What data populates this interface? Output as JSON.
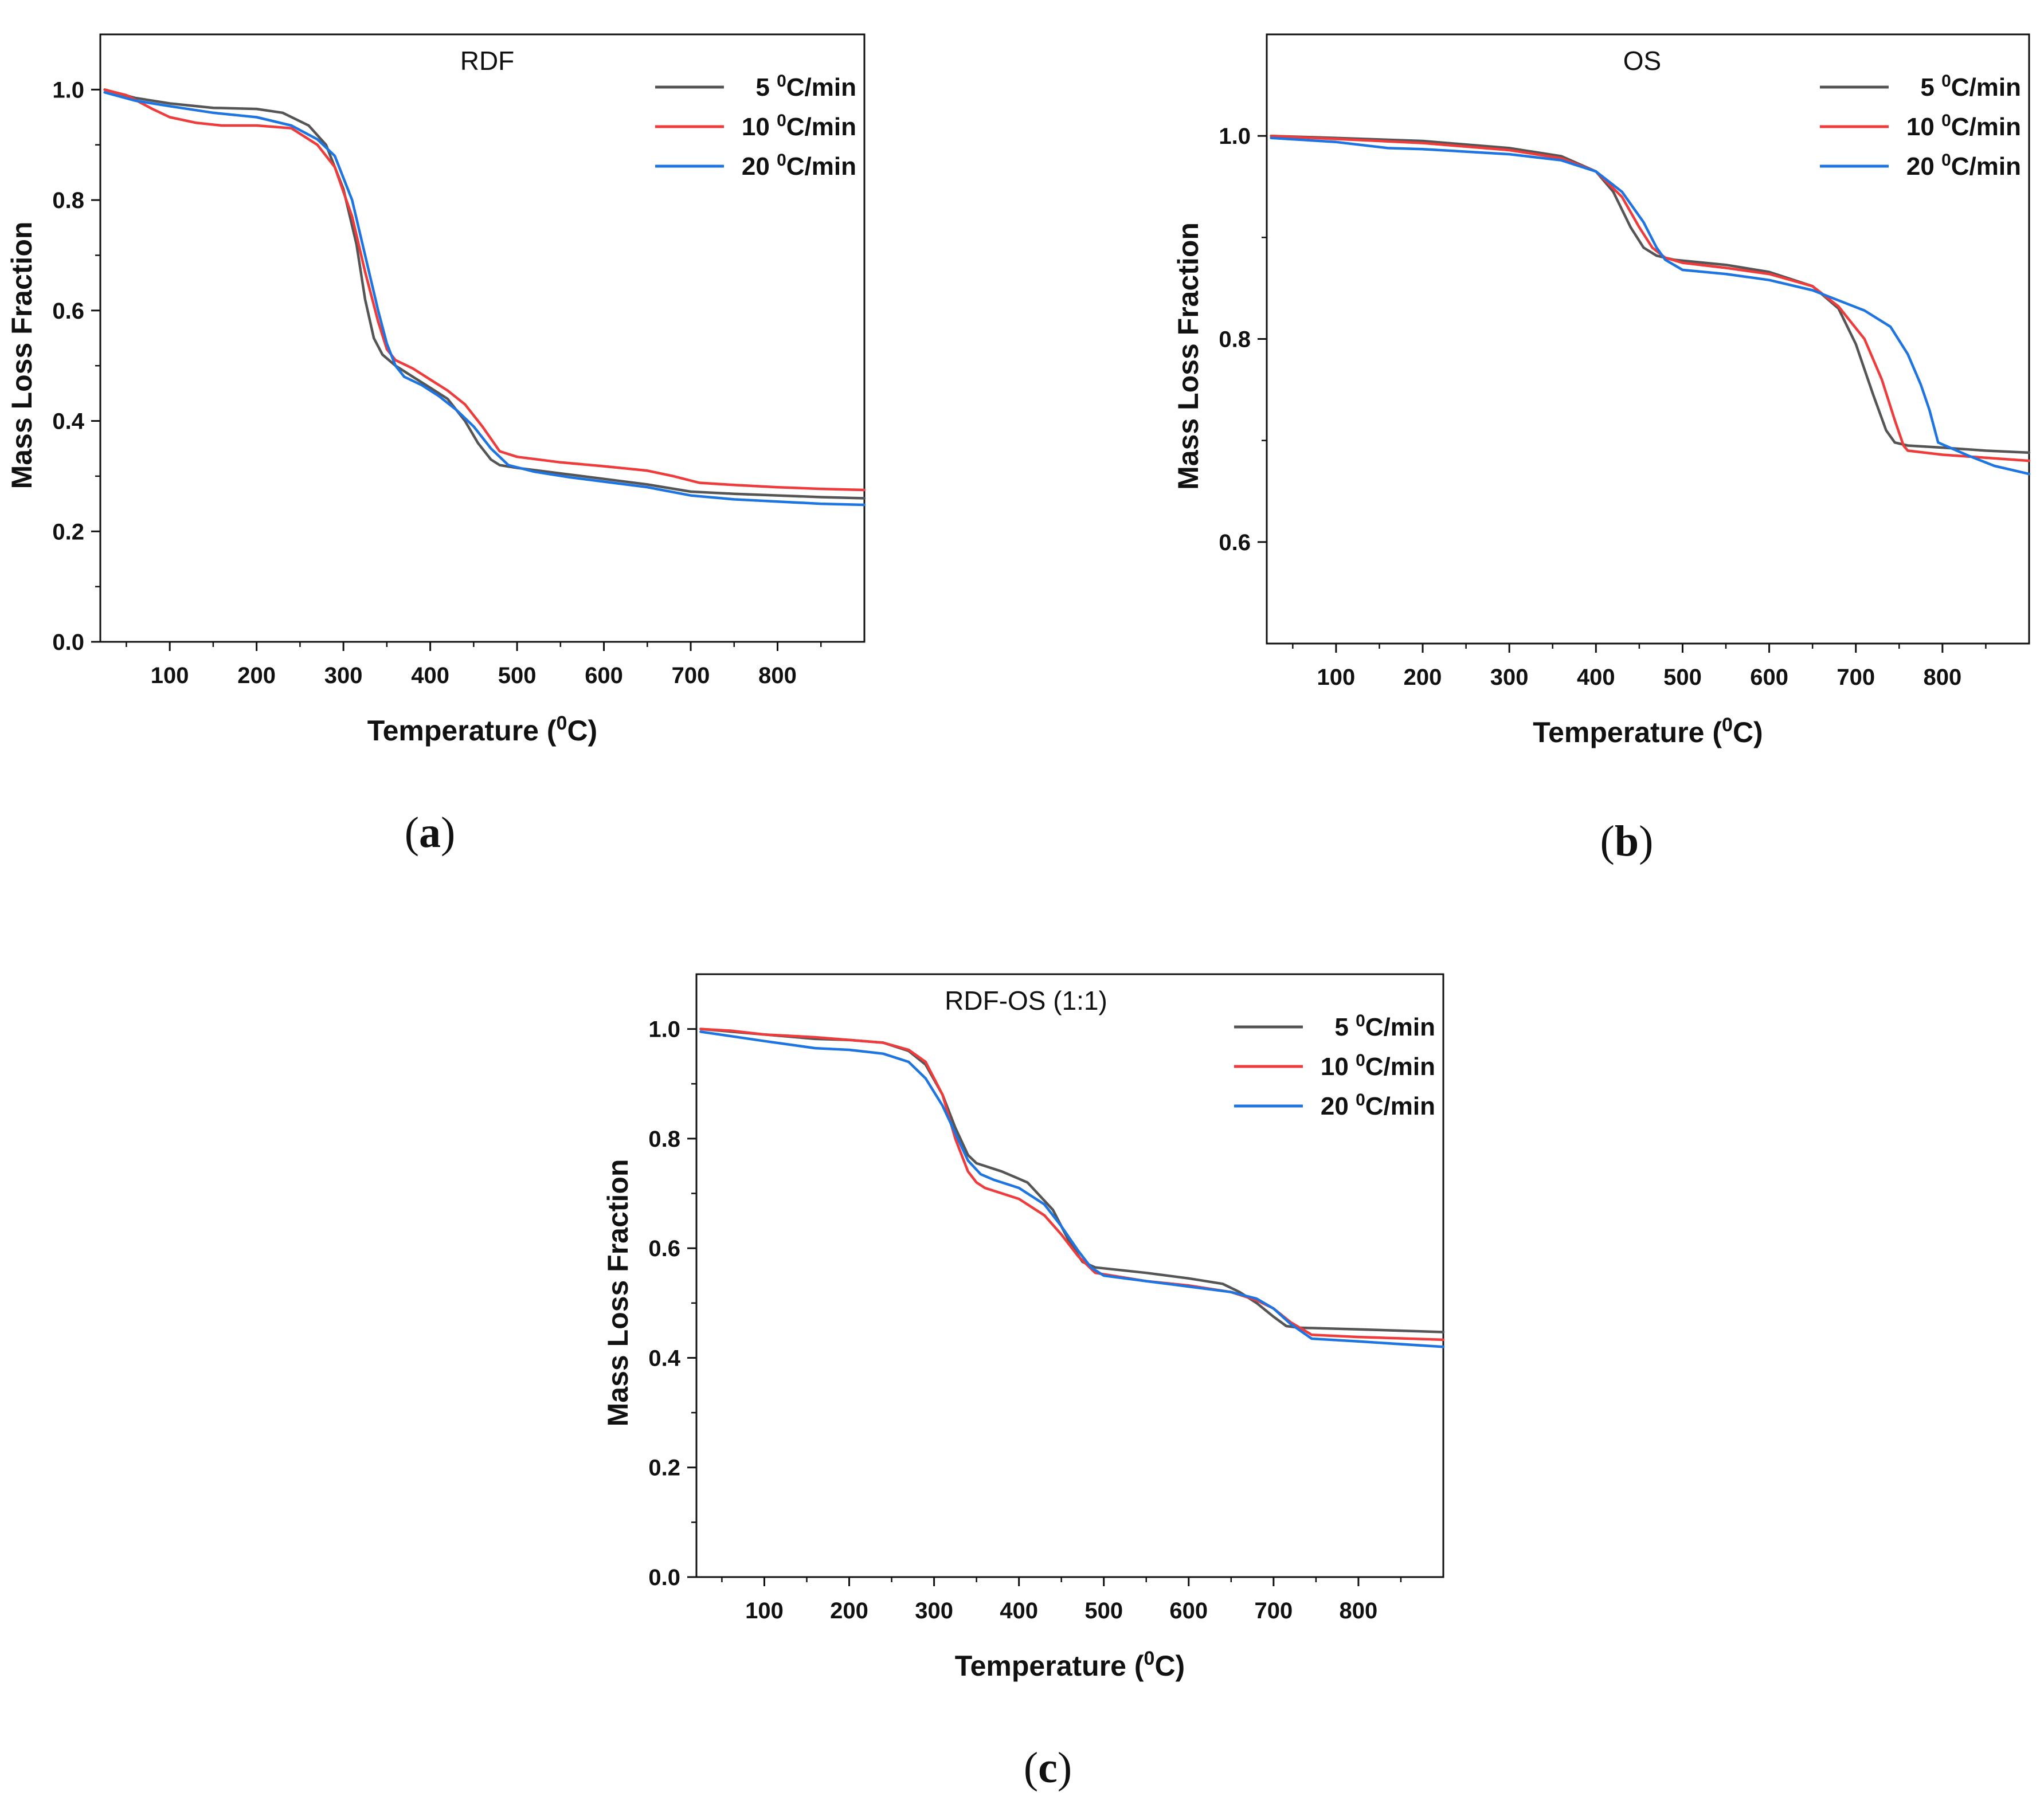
{
  "captions": [
    "(a)",
    "(b)",
    "(c)"
  ],
  "legend_entries": [
    {
      "rate": "5",
      "superscript": "0",
      "unit": "C/min"
    },
    {
      "rate": "10",
      "superscript": "0",
      "unit": "C/min"
    },
    {
      "rate": "20",
      "superscript": "0",
      "unit": "C/min"
    }
  ],
  "series_colors": [
    "#555555",
    "#ee3b3b",
    "#1e74e0"
  ],
  "chart_data": [
    {
      "type": "line",
      "title": "RDF",
      "xlabel": "Temperature (0C)",
      "ylabel": "Mass Loss Fraction",
      "xlim": [
        20,
        900
      ],
      "ylim": [
        0.0,
        1.1
      ],
      "xticks": [
        100,
        200,
        300,
        400,
        500,
        600,
        700,
        800
      ],
      "yticks": [
        0.0,
        0.2,
        0.4,
        0.6,
        0.8,
        1.0
      ],
      "series": [
        {
          "name": "5 0C/min",
          "x": [
            25,
            60,
            100,
            150,
            200,
            230,
            260,
            280,
            300,
            315,
            325,
            335,
            345,
            360,
            380,
            400,
            420,
            440,
            455,
            470,
            480,
            500,
            550,
            600,
            650,
            700,
            750,
            800,
            850,
            900
          ],
          "y": [
            1.0,
            0.985,
            0.975,
            0.967,
            0.965,
            0.958,
            0.935,
            0.9,
            0.82,
            0.72,
            0.62,
            0.55,
            0.52,
            0.5,
            0.48,
            0.46,
            0.44,
            0.4,
            0.36,
            0.33,
            0.32,
            0.315,
            0.305,
            0.295,
            0.285,
            0.272,
            0.268,
            0.265,
            0.262,
            0.26
          ]
        },
        {
          "name": "10 0C/min",
          "x": [
            25,
            50,
            80,
            100,
            130,
            160,
            200,
            240,
            270,
            290,
            310,
            325,
            340,
            350,
            360,
            380,
            400,
            420,
            440,
            460,
            480,
            500,
            550,
            600,
            650,
            680,
            710,
            750,
            800,
            850,
            900
          ],
          "y": [
            1.0,
            0.99,
            0.965,
            0.95,
            0.94,
            0.935,
            0.935,
            0.93,
            0.9,
            0.86,
            0.77,
            0.67,
            0.58,
            0.53,
            0.51,
            0.495,
            0.475,
            0.455,
            0.43,
            0.39,
            0.345,
            0.335,
            0.325,
            0.318,
            0.31,
            0.3,
            0.288,
            0.284,
            0.28,
            0.277,
            0.275
          ]
        },
        {
          "name": "20 0C/min",
          "x": [
            25,
            60,
            100,
            150,
            200,
            240,
            270,
            290,
            310,
            325,
            340,
            350,
            360,
            370,
            390,
            410,
            430,
            450,
            470,
            490,
            520,
            560,
            600,
            650,
            700,
            750,
            800,
            850,
            900
          ],
          "y": [
            0.995,
            0.98,
            0.97,
            0.958,
            0.95,
            0.935,
            0.91,
            0.88,
            0.8,
            0.7,
            0.6,
            0.54,
            0.5,
            0.48,
            0.465,
            0.445,
            0.42,
            0.39,
            0.35,
            0.32,
            0.308,
            0.298,
            0.29,
            0.28,
            0.265,
            0.258,
            0.254,
            0.25,
            0.248
          ]
        }
      ]
    },
    {
      "type": "line",
      "title": "OS",
      "xlabel": "Temperature (0C)",
      "ylabel": "Mass Loss Fraction",
      "xlim": [
        20,
        900
      ],
      "ylim": [
        0.5,
        1.1
      ],
      "xticks": [
        100,
        200,
        300,
        400,
        500,
        600,
        700,
        800
      ],
      "yticks": [
        0.6,
        0.8,
        1.0
      ],
      "series": [
        {
          "name": "5 0C/min",
          "x": [
            25,
            100,
            200,
            300,
            360,
            400,
            420,
            440,
            455,
            470,
            490,
            550,
            600,
            650,
            680,
            700,
            720,
            735,
            745,
            760,
            800,
            850,
            900
          ],
          "y": [
            1.0,
            0.998,
            0.995,
            0.988,
            0.98,
            0.965,
            0.945,
            0.91,
            0.89,
            0.882,
            0.878,
            0.873,
            0.866,
            0.852,
            0.83,
            0.795,
            0.745,
            0.71,
            0.698,
            0.695,
            0.693,
            0.69,
            0.688
          ]
        },
        {
          "name": "10 0C/min",
          "x": [
            25,
            100,
            200,
            300,
            360,
            400,
            430,
            450,
            465,
            480,
            500,
            550,
            600,
            650,
            680,
            710,
            730,
            745,
            755,
            760,
            800,
            850,
            900
          ],
          "y": [
            1.0,
            0.997,
            0.993,
            0.986,
            0.978,
            0.965,
            0.94,
            0.91,
            0.89,
            0.88,
            0.875,
            0.87,
            0.864,
            0.852,
            0.832,
            0.8,
            0.76,
            0.72,
            0.695,
            0.69,
            0.686,
            0.683,
            0.68
          ]
        },
        {
          "name": "20 0C/min",
          "x": [
            25,
            100,
            160,
            200,
            300,
            360,
            400,
            430,
            455,
            470,
            480,
            500,
            550,
            600,
            650,
            680,
            710,
            740,
            760,
            775,
            785,
            795,
            830,
            860,
            900
          ],
          "y": [
            0.998,
            0.994,
            0.988,
            0.987,
            0.982,
            0.976,
            0.965,
            0.945,
            0.915,
            0.89,
            0.878,
            0.868,
            0.864,
            0.858,
            0.848,
            0.838,
            0.828,
            0.812,
            0.785,
            0.755,
            0.73,
            0.698,
            0.685,
            0.675,
            0.667
          ]
        }
      ]
    },
    {
      "type": "line",
      "title": "RDF-OS (1:1)",
      "xlabel": "Temperature (0C)",
      "ylabel": "Mass Loss Fraction",
      "xlim": [
        20,
        900
      ],
      "ylim": [
        0.0,
        1.1
      ],
      "xticks": [
        100,
        200,
        300,
        400,
        500,
        600,
        700,
        800
      ],
      "yticks": [
        0.0,
        0.2,
        0.4,
        0.6,
        0.8,
        1.0
      ],
      "series": [
        {
          "name": "5 0C/min",
          "x": [
            25,
            100,
            160,
            200,
            240,
            270,
            290,
            310,
            325,
            340,
            350,
            380,
            410,
            440,
            460,
            475,
            490,
            550,
            600,
            640,
            660,
            680,
            700,
            715,
            730,
            800,
            900
          ],
          "y": [
            1.0,
            0.99,
            0.982,
            0.98,
            0.975,
            0.96,
            0.935,
            0.88,
            0.82,
            0.77,
            0.755,
            0.74,
            0.72,
            0.67,
            0.61,
            0.575,
            0.565,
            0.555,
            0.545,
            0.535,
            0.52,
            0.5,
            0.475,
            0.458,
            0.455,
            0.452,
            0.447
          ]
        },
        {
          "name": "10 0C/min",
          "x": [
            25,
            60,
            100,
            160,
            200,
            240,
            270,
            290,
            310,
            325,
            340,
            350,
            360,
            400,
            430,
            450,
            470,
            490,
            550,
            600,
            650,
            680,
            700,
            720,
            745,
            800,
            900
          ],
          "y": [
            1.0,
            0.997,
            0.99,
            0.985,
            0.98,
            0.975,
            0.962,
            0.94,
            0.88,
            0.8,
            0.74,
            0.72,
            0.71,
            0.69,
            0.66,
            0.625,
            0.585,
            0.555,
            0.54,
            0.532,
            0.52,
            0.505,
            0.49,
            0.465,
            0.442,
            0.438,
            0.433
          ]
        },
        {
          "name": "20 0C/min",
          "x": [
            25,
            100,
            160,
            200,
            240,
            270,
            290,
            310,
            325,
            340,
            355,
            370,
            400,
            430,
            450,
            470,
            485,
            500,
            550,
            600,
            650,
            680,
            700,
            720,
            745,
            800,
            900
          ],
          "y": [
            0.995,
            0.978,
            0.965,
            0.962,
            0.955,
            0.94,
            0.91,
            0.86,
            0.81,
            0.76,
            0.735,
            0.725,
            0.71,
            0.68,
            0.64,
            0.595,
            0.565,
            0.55,
            0.54,
            0.53,
            0.52,
            0.508,
            0.49,
            0.462,
            0.435,
            0.43,
            0.42
          ]
        }
      ]
    }
  ]
}
